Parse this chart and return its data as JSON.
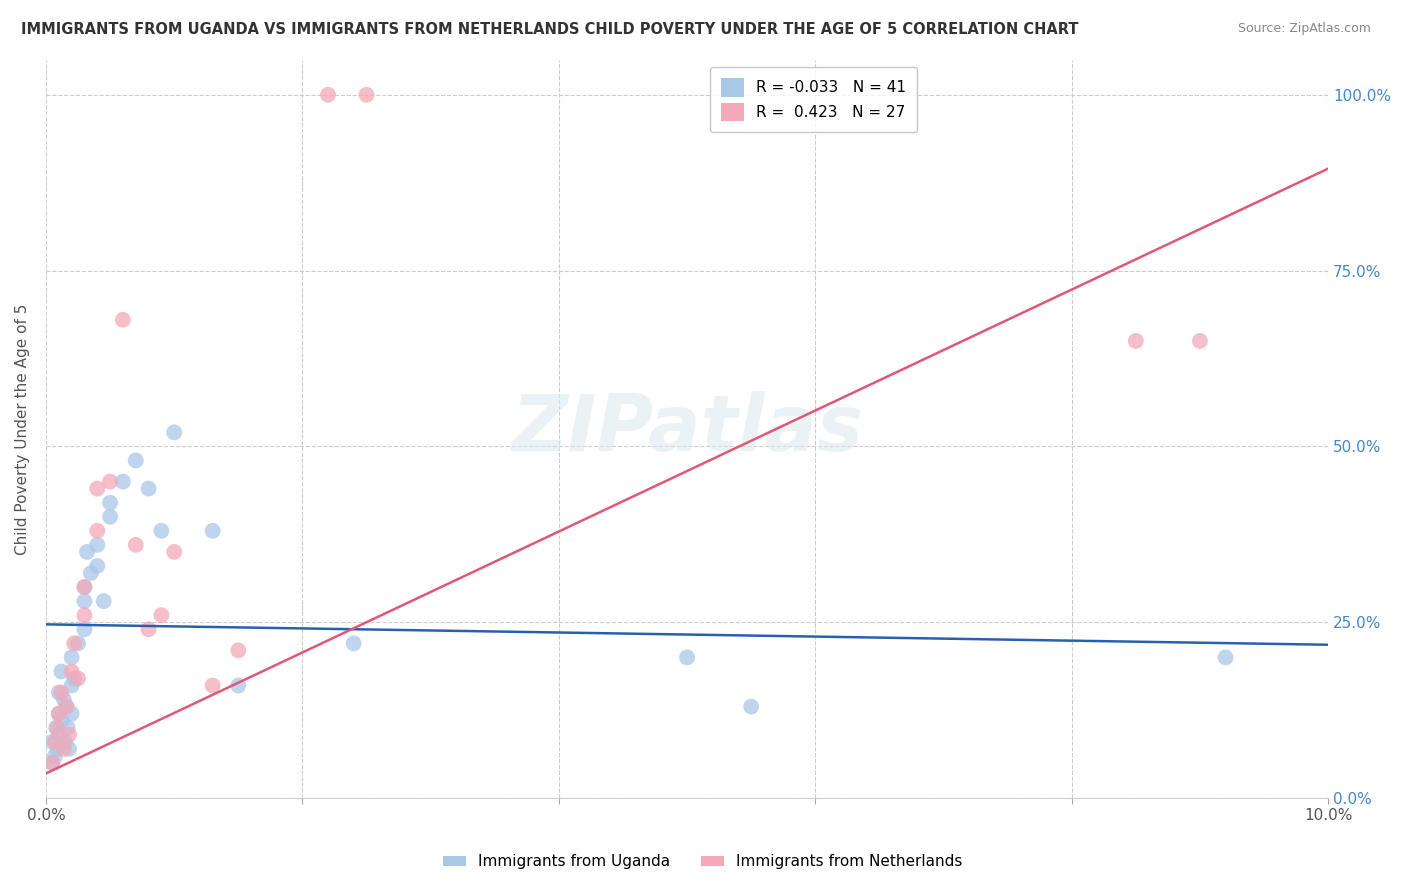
{
  "title": "IMMIGRANTS FROM UGANDA VS IMMIGRANTS FROM NETHERLANDS CHILD POVERTY UNDER THE AGE OF 5 CORRELATION CHART",
  "source": "Source: ZipAtlas.com",
  "ylabel": "Child Poverty Under the Age of 5",
  "xlim": [
    0.0,
    0.1
  ],
  "ylim": [
    0.0,
    1.05
  ],
  "yticks": [
    0.0,
    0.25,
    0.5,
    0.75,
    1.0
  ],
  "ytick_labels": [
    "0.0%",
    "25.0%",
    "50.0%",
    "75.0%",
    "100.0%"
  ],
  "xticks": [
    0.0,
    0.02,
    0.04,
    0.06,
    0.08,
    0.1
  ],
  "xtick_labels": [
    "0.0%",
    "",
    "",
    "",
    "",
    "10.0%"
  ],
  "legend_R_uganda": "-0.033",
  "legend_N_uganda": "41",
  "legend_R_netherlands": "0.423",
  "legend_N_netherlands": "27",
  "color_uganda": "#a8c8e8",
  "color_netherlands": "#f4a8b8",
  "line_color_uganda": "#2860b0",
  "line_color_netherlands": "#e05878",
  "watermark_text": "ZIPatlas",
  "legend_label_uganda": "Immigrants from Uganda",
  "legend_label_netherlands": "Immigrants from Netherlands",
  "uganda_x": [
    0.0005,
    0.0005,
    0.0007,
    0.0008,
    0.0009,
    0.001,
    0.001,
    0.001,
    0.0012,
    0.0012,
    0.0014,
    0.0015,
    0.0016,
    0.0017,
    0.0018,
    0.002,
    0.002,
    0.002,
    0.0022,
    0.0025,
    0.003,
    0.003,
    0.003,
    0.0032,
    0.0035,
    0.004,
    0.004,
    0.0045,
    0.005,
    0.005,
    0.006,
    0.007,
    0.008,
    0.009,
    0.01,
    0.013,
    0.015,
    0.024,
    0.05,
    0.055,
    0.092
  ],
  "uganda_y": [
    0.05,
    0.08,
    0.06,
    0.1,
    0.07,
    0.12,
    0.09,
    0.15,
    0.18,
    0.11,
    0.14,
    0.08,
    0.13,
    0.1,
    0.07,
    0.2,
    0.16,
    0.12,
    0.17,
    0.22,
    0.3,
    0.28,
    0.24,
    0.35,
    0.32,
    0.36,
    0.33,
    0.28,
    0.4,
    0.42,
    0.45,
    0.48,
    0.44,
    0.38,
    0.52,
    0.38,
    0.16,
    0.22,
    0.2,
    0.13,
    0.2
  ],
  "netherlands_x": [
    0.0005,
    0.0007,
    0.0009,
    0.001,
    0.0012,
    0.0014,
    0.0016,
    0.0018,
    0.002,
    0.0022,
    0.0025,
    0.003,
    0.003,
    0.004,
    0.004,
    0.005,
    0.006,
    0.007,
    0.008,
    0.009,
    0.01,
    0.013,
    0.015,
    0.022,
    0.025,
    0.085,
    0.09
  ],
  "netherlands_y": [
    0.05,
    0.08,
    0.1,
    0.12,
    0.15,
    0.07,
    0.13,
    0.09,
    0.18,
    0.22,
    0.17,
    0.3,
    0.26,
    0.38,
    0.44,
    0.45,
    0.68,
    0.36,
    0.24,
    0.26,
    0.35,
    0.16,
    0.21,
    1.0,
    1.0,
    0.65,
    0.65
  ],
  "uganda_line_x0": 0.0,
  "uganda_line_y0": 0.247,
  "uganda_line_x1": 0.1,
  "uganda_line_y1": 0.218,
  "netherlands_line_x0": 0.0,
  "netherlands_line_y0": 0.035,
  "netherlands_line_x1": 0.1,
  "netherlands_line_y1": 0.895
}
